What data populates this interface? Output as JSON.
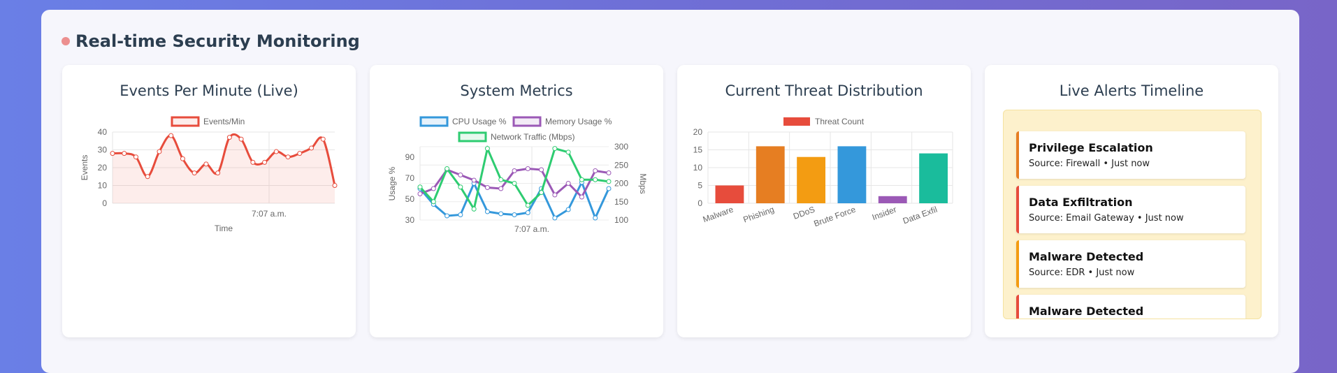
{
  "page": {
    "title": "Real-time Security Monitoring"
  },
  "cards": {
    "events": {
      "title": "Events Per Minute (Live)"
    },
    "system": {
      "title": "System Metrics"
    },
    "threats": {
      "title": "Current Threat Distribution"
    },
    "alerts": {
      "title": "Live Alerts Timeline"
    }
  },
  "colors": {
    "red": "#e74c3c",
    "blue": "#3498db",
    "purple": "#9b59b6",
    "green": "#2ecc71",
    "orange": "#e67e22",
    "yellow": "#f39c12",
    "teal": "#1abc9c",
    "alert_orange": "#e67e22",
    "alert_red": "#e74c3c",
    "alert_yellow": "#f39c12"
  },
  "chart_data": [
    {
      "type": "line",
      "legend": [
        "Events/Min"
      ],
      "xlabel": "Time",
      "ylabel": "Events",
      "xtick": "7:07 a.m.",
      "ylim": [
        0,
        40
      ],
      "yticks": [
        0,
        10,
        20,
        30,
        40
      ],
      "series": [
        {
          "name": "Events/Min",
          "values": [
            28,
            28,
            26,
            15,
            29,
            38,
            25,
            17,
            22,
            17,
            37,
            36,
            23,
            23,
            29,
            26,
            28,
            31,
            36,
            10
          ]
        }
      ]
    },
    {
      "type": "line",
      "legend": [
        "CPU Usage %",
        "Memory Usage %",
        "Network Traffic (Mbps)"
      ],
      "ylabel": "Usage %",
      "y2label": "Mbps",
      "xtick": "7:07 a.m.",
      "ylim": [
        30,
        100
      ],
      "yticks": [
        30,
        50,
        70,
        90
      ],
      "y2lim": [
        100,
        300
      ],
      "y2ticks": [
        100,
        150,
        200,
        250,
        300
      ],
      "series": [
        {
          "name": "CPU Usage %",
          "axis": "left",
          "values": [
            60,
            45,
            34,
            35,
            65,
            38,
            36,
            35,
            37,
            60,
            32,
            40,
            66,
            32,
            60
          ]
        },
        {
          "name": "Memory Usage %",
          "axis": "left",
          "values": [
            55,
            60,
            78,
            73,
            68,
            61,
            60,
            77,
            79,
            78,
            54,
            65,
            52,
            77,
            75
          ]
        },
        {
          "name": "Network Traffic (Mbps)",
          "axis": "right",
          "values": [
            190,
            150,
            240,
            190,
            130,
            295,
            210,
            200,
            140,
            175,
            295,
            285,
            210,
            210,
            205
          ]
        }
      ]
    },
    {
      "type": "bar",
      "legend": [
        "Threat Count"
      ],
      "categories": [
        "Malware",
        "Phishing",
        "DDoS",
        "Brute Force",
        "Insider",
        "Data Exfil"
      ],
      "values": [
        5,
        16,
        13,
        16,
        2,
        14
      ],
      "ylim": [
        0,
        20
      ],
      "yticks": [
        0,
        5,
        10,
        15,
        20
      ]
    }
  ],
  "alerts": [
    {
      "title": "Privilege Escalation",
      "source": "Source: Firewall • Just now",
      "color": "#e67e22"
    },
    {
      "title": "Data Exfiltration",
      "source": "Source: Email Gateway • Just now",
      "color": "#e74c3c"
    },
    {
      "title": "Malware Detected",
      "source": "Source: EDR • Just now",
      "color": "#f39c12"
    },
    {
      "title": "Malware Detected",
      "source": "",
      "color": "#e74c3c"
    }
  ]
}
